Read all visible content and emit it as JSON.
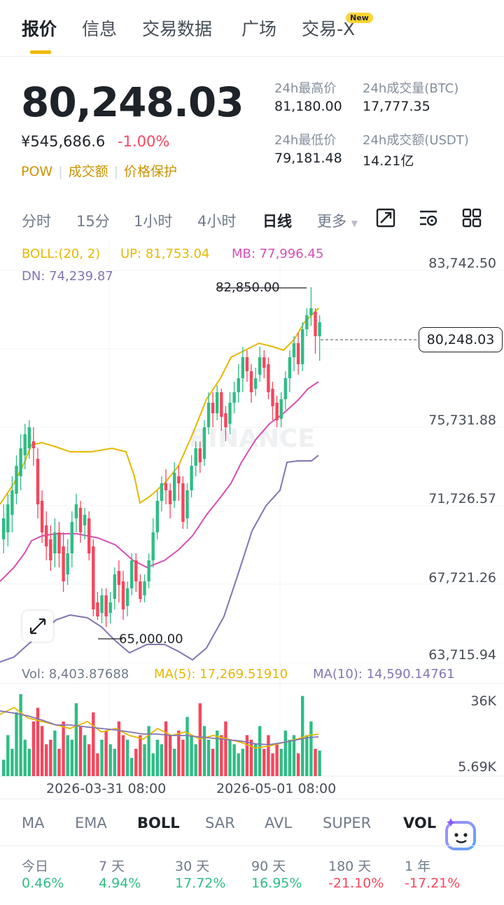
{
  "tabs": [
    {
      "label": "报价",
      "active": true
    },
    {
      "label": "信息"
    },
    {
      "label": "交易数据"
    },
    {
      "label": "广场"
    },
    {
      "label": "交易-X",
      "badge": "New"
    }
  ],
  "price": {
    "last": "80,248.03",
    "cny": "¥545,686.6",
    "change_pct": "-1.00%",
    "tags": [
      "POW",
      "成交额",
      "价格保护"
    ]
  },
  "stats": {
    "high_label": "24h最高价",
    "high": "81,180.00",
    "vol_btc_label": "24h成交量(BTC)",
    "vol_btc": "17,777.35",
    "low_label": "24h最低价",
    "low": "79,181.48",
    "vol_usdt_label": "24h成交额(USDT)",
    "vol_usdt": "14.21亿"
  },
  "intervals": [
    {
      "label": "分时"
    },
    {
      "label": "15分"
    },
    {
      "label": "1小时"
    },
    {
      "label": "4小时"
    },
    {
      "label": "日线",
      "active": true
    },
    {
      "label": "更多"
    }
  ],
  "indicators": {
    "boll": "BOLL:(20, 2)",
    "up": "UP: 81,753.04",
    "mb": "MB: 77,996.45",
    "dn": "DN: 74,239.87",
    "vol": "Vol: 8,403.87688",
    "ma5": "MA(5): 17,269.51910",
    "ma10": "MA(10): 14,590.14761"
  },
  "axis": {
    "price_ticks": [
      "83,742.50",
      "75,731.88",
      "71,726.57",
      "67,721.26",
      "63,715.94"
    ],
    "vol_ticks": [
      "36K",
      "5.69K"
    ],
    "current_price": "80,248.03",
    "high_marker": "82,850.00",
    "low_marker": "65,000.00",
    "dates": [
      "2026-03-31 08:00",
      "2026-05-01 08:00"
    ]
  },
  "watermark": "BINANCE",
  "indicator_tabs": [
    {
      "label": "MA"
    },
    {
      "label": "EMA"
    },
    {
      "label": "BOLL",
      "active": true
    },
    {
      "label": "SAR"
    },
    {
      "label": "AVL"
    },
    {
      "label": "SUPER"
    },
    {
      "label": "VOL",
      "active": true
    }
  ],
  "performance": [
    {
      "label": "今日",
      "value": "0.46%",
      "dir": "up"
    },
    {
      "label": "7 天",
      "value": "4.94%",
      "dir": "up"
    },
    {
      "label": "30 天",
      "value": "17.72%",
      "dir": "up"
    },
    {
      "label": "90 天",
      "value": "16.95%",
      "dir": "up"
    },
    {
      "label": "180 天",
      "value": "-21.10%",
      "dir": "down"
    },
    {
      "label": "1 年",
      "value": "-17.21%",
      "dir": "down"
    }
  ],
  "colors": {
    "up": "#2ebd85",
    "down": "#f6465d",
    "accent": "#f0b90b",
    "boll_up": "#e6b800",
    "boll_mb": "#d64fb4",
    "boll_dn": "#8474b3"
  }
}
